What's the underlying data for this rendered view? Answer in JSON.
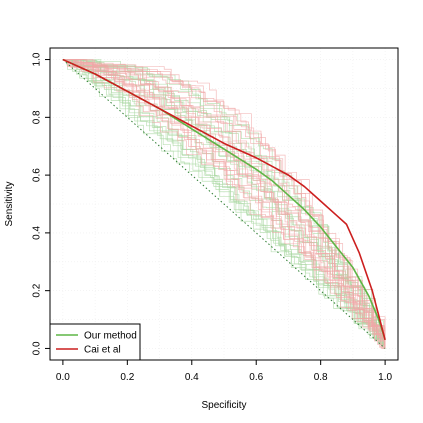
{
  "chart_data": {
    "type": "line",
    "xlabel": "Specificity",
    "ylabel": "Sensitivity",
    "xlim": [
      0.0,
      1.0
    ],
    "ylim": [
      0.0,
      1.0
    ],
    "x_ticks": [
      "0.0",
      "0.2",
      "0.4",
      "0.6",
      "0.8",
      "1.0"
    ],
    "y_ticks": [
      "0.0",
      "0.2",
      "0.4",
      "0.6",
      "0.8",
      "1.0"
    ],
    "grid": true,
    "legend_position": "bottom-left",
    "reference_line": {
      "x": [
        0.0,
        1.0
      ],
      "y": [
        1.0,
        0.0
      ],
      "style": "dotted",
      "color": "#2e7d32"
    },
    "series": [
      {
        "name": "Our method",
        "color": "#5fb546",
        "x": [
          0.0,
          0.1,
          0.2,
          0.3,
          0.4,
          0.5,
          0.6,
          0.65,
          0.7,
          0.75,
          0.8,
          0.85,
          0.9,
          0.95,
          0.98,
          1.0
        ],
        "y": [
          1.0,
          0.95,
          0.89,
          0.83,
          0.76,
          0.69,
          0.62,
          0.58,
          0.53,
          0.48,
          0.42,
          0.35,
          0.28,
          0.18,
          0.1,
          0.03
        ]
      },
      {
        "name": "Cai et al",
        "color": "#cc1f1f",
        "x": [
          0.0,
          0.1,
          0.2,
          0.3,
          0.4,
          0.5,
          0.6,
          0.65,
          0.7,
          0.75,
          0.8,
          0.85,
          0.88,
          0.92,
          0.96,
          1.0
        ],
        "y": [
          1.0,
          0.95,
          0.89,
          0.83,
          0.77,
          0.71,
          0.66,
          0.63,
          0.6,
          0.56,
          0.51,
          0.46,
          0.43,
          0.33,
          0.2,
          0.03
        ]
      }
    ],
    "background_curves": {
      "green_count": 22,
      "red_count": 22,
      "green_color": "#a8d7a0",
      "red_color": "#f0a7a7"
    }
  }
}
